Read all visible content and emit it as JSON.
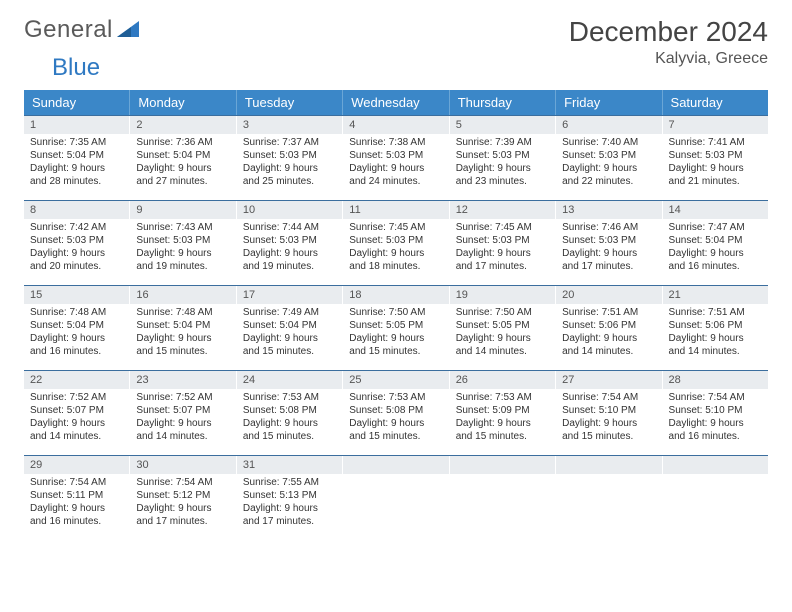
{
  "logo": {
    "text1": "General",
    "text2": "Blue"
  },
  "title": "December 2024",
  "location": "Kalyvia, Greece",
  "colors": {
    "headerBg": "#3b87c8",
    "headerText": "#ffffff",
    "rowBorder": "#3b6e9e",
    "dayNumBg": "#e9ecef",
    "pageBg": "#ffffff"
  },
  "dow": [
    "Sunday",
    "Monday",
    "Tuesday",
    "Wednesday",
    "Thursday",
    "Friday",
    "Saturday"
  ],
  "weeks": [
    [
      {
        "n": "1",
        "sr": "Sunrise: 7:35 AM",
        "ss": "Sunset: 5:04 PM",
        "dl": "Daylight: 9 hours and 28 minutes."
      },
      {
        "n": "2",
        "sr": "Sunrise: 7:36 AM",
        "ss": "Sunset: 5:04 PM",
        "dl": "Daylight: 9 hours and 27 minutes."
      },
      {
        "n": "3",
        "sr": "Sunrise: 7:37 AM",
        "ss": "Sunset: 5:03 PM",
        "dl": "Daylight: 9 hours and 25 minutes."
      },
      {
        "n": "4",
        "sr": "Sunrise: 7:38 AM",
        "ss": "Sunset: 5:03 PM",
        "dl": "Daylight: 9 hours and 24 minutes."
      },
      {
        "n": "5",
        "sr": "Sunrise: 7:39 AM",
        "ss": "Sunset: 5:03 PM",
        "dl": "Daylight: 9 hours and 23 minutes."
      },
      {
        "n": "6",
        "sr": "Sunrise: 7:40 AM",
        "ss": "Sunset: 5:03 PM",
        "dl": "Daylight: 9 hours and 22 minutes."
      },
      {
        "n": "7",
        "sr": "Sunrise: 7:41 AM",
        "ss": "Sunset: 5:03 PM",
        "dl": "Daylight: 9 hours and 21 minutes."
      }
    ],
    [
      {
        "n": "8",
        "sr": "Sunrise: 7:42 AM",
        "ss": "Sunset: 5:03 PM",
        "dl": "Daylight: 9 hours and 20 minutes."
      },
      {
        "n": "9",
        "sr": "Sunrise: 7:43 AM",
        "ss": "Sunset: 5:03 PM",
        "dl": "Daylight: 9 hours and 19 minutes."
      },
      {
        "n": "10",
        "sr": "Sunrise: 7:44 AM",
        "ss": "Sunset: 5:03 PM",
        "dl": "Daylight: 9 hours and 19 minutes."
      },
      {
        "n": "11",
        "sr": "Sunrise: 7:45 AM",
        "ss": "Sunset: 5:03 PM",
        "dl": "Daylight: 9 hours and 18 minutes."
      },
      {
        "n": "12",
        "sr": "Sunrise: 7:45 AM",
        "ss": "Sunset: 5:03 PM",
        "dl": "Daylight: 9 hours and 17 minutes."
      },
      {
        "n": "13",
        "sr": "Sunrise: 7:46 AM",
        "ss": "Sunset: 5:03 PM",
        "dl": "Daylight: 9 hours and 17 minutes."
      },
      {
        "n": "14",
        "sr": "Sunrise: 7:47 AM",
        "ss": "Sunset: 5:04 PM",
        "dl": "Daylight: 9 hours and 16 minutes."
      }
    ],
    [
      {
        "n": "15",
        "sr": "Sunrise: 7:48 AM",
        "ss": "Sunset: 5:04 PM",
        "dl": "Daylight: 9 hours and 16 minutes."
      },
      {
        "n": "16",
        "sr": "Sunrise: 7:48 AM",
        "ss": "Sunset: 5:04 PM",
        "dl": "Daylight: 9 hours and 15 minutes."
      },
      {
        "n": "17",
        "sr": "Sunrise: 7:49 AM",
        "ss": "Sunset: 5:04 PM",
        "dl": "Daylight: 9 hours and 15 minutes."
      },
      {
        "n": "18",
        "sr": "Sunrise: 7:50 AM",
        "ss": "Sunset: 5:05 PM",
        "dl": "Daylight: 9 hours and 15 minutes."
      },
      {
        "n": "19",
        "sr": "Sunrise: 7:50 AM",
        "ss": "Sunset: 5:05 PM",
        "dl": "Daylight: 9 hours and 14 minutes."
      },
      {
        "n": "20",
        "sr": "Sunrise: 7:51 AM",
        "ss": "Sunset: 5:06 PM",
        "dl": "Daylight: 9 hours and 14 minutes."
      },
      {
        "n": "21",
        "sr": "Sunrise: 7:51 AM",
        "ss": "Sunset: 5:06 PM",
        "dl": "Daylight: 9 hours and 14 minutes."
      }
    ],
    [
      {
        "n": "22",
        "sr": "Sunrise: 7:52 AM",
        "ss": "Sunset: 5:07 PM",
        "dl": "Daylight: 9 hours and 14 minutes."
      },
      {
        "n": "23",
        "sr": "Sunrise: 7:52 AM",
        "ss": "Sunset: 5:07 PM",
        "dl": "Daylight: 9 hours and 14 minutes."
      },
      {
        "n": "24",
        "sr": "Sunrise: 7:53 AM",
        "ss": "Sunset: 5:08 PM",
        "dl": "Daylight: 9 hours and 15 minutes."
      },
      {
        "n": "25",
        "sr": "Sunrise: 7:53 AM",
        "ss": "Sunset: 5:08 PM",
        "dl": "Daylight: 9 hours and 15 minutes."
      },
      {
        "n": "26",
        "sr": "Sunrise: 7:53 AM",
        "ss": "Sunset: 5:09 PM",
        "dl": "Daylight: 9 hours and 15 minutes."
      },
      {
        "n": "27",
        "sr": "Sunrise: 7:54 AM",
        "ss": "Sunset: 5:10 PM",
        "dl": "Daylight: 9 hours and 15 minutes."
      },
      {
        "n": "28",
        "sr": "Sunrise: 7:54 AM",
        "ss": "Sunset: 5:10 PM",
        "dl": "Daylight: 9 hours and 16 minutes."
      }
    ],
    [
      {
        "n": "29",
        "sr": "Sunrise: 7:54 AM",
        "ss": "Sunset: 5:11 PM",
        "dl": "Daylight: 9 hours and 16 minutes."
      },
      {
        "n": "30",
        "sr": "Sunrise: 7:54 AM",
        "ss": "Sunset: 5:12 PM",
        "dl": "Daylight: 9 hours and 17 minutes."
      },
      {
        "n": "31",
        "sr": "Sunrise: 7:55 AM",
        "ss": "Sunset: 5:13 PM",
        "dl": "Daylight: 9 hours and 17 minutes."
      },
      {
        "n": "",
        "sr": "",
        "ss": "",
        "dl": "",
        "empty": true
      },
      {
        "n": "",
        "sr": "",
        "ss": "",
        "dl": "",
        "empty": true
      },
      {
        "n": "",
        "sr": "",
        "ss": "",
        "dl": "",
        "empty": true
      },
      {
        "n": "",
        "sr": "",
        "ss": "",
        "dl": "",
        "empty": true
      }
    ]
  ]
}
